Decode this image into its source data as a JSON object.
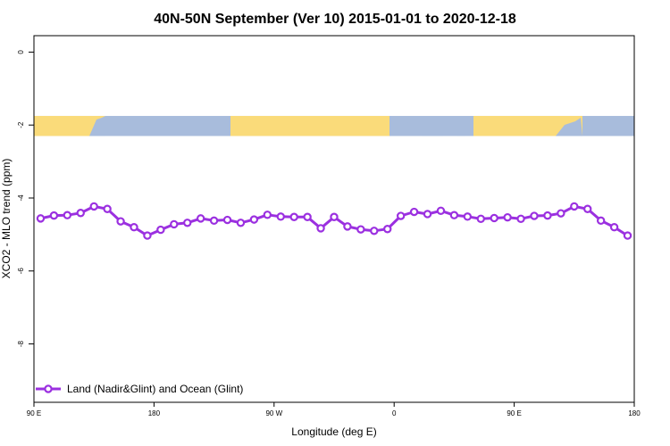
{
  "chart_data": {
    "type": "line",
    "title": "40N-50N September (Ver 10)   2015-01-01 to 2020-12-18",
    "xlabel": "Longitude (deg E)",
    "ylabel": "XCO2 - MLO trend (ppm)",
    "x_ticks": [
      {
        "lon": 90,
        "label": "90 E"
      },
      {
        "lon": 180,
        "label": "180"
      },
      {
        "lon": 270,
        "label": "90 W"
      },
      {
        "lon": 360,
        "label": "0"
      },
      {
        "lon": 450,
        "label": "90 E"
      },
      {
        "lon": 540,
        "label": "180"
      }
    ],
    "y_ticks": [
      {
        "value": 0,
        "label": "0"
      },
      {
        "value": -2,
        "label": "-2"
      },
      {
        "value": -4,
        "label": "-4"
      },
      {
        "value": -6,
        "label": "-6"
      },
      {
        "value": -8,
        "label": "-8"
      }
    ],
    "xlim": [
      90,
      540
    ],
    "ylim": [
      -9.6,
      0.45
    ],
    "grid": false,
    "legend_position": "bottom-left",
    "land_ocean_strip": {
      "y_top": -1.75,
      "y_bottom": -2.3,
      "land_color": "#fadb7a",
      "ocean_color": "#a8bcdc"
    },
    "series": [
      {
        "name": "Land (Nadir&Glint) and Ocean (Glint)",
        "color": "#9b30e0",
        "x": [
          95,
          105,
          115,
          125,
          135,
          145,
          155,
          165,
          175,
          185,
          195,
          205,
          215,
          225,
          235,
          245,
          255,
          265,
          275,
          285,
          295,
          305,
          315,
          325,
          335,
          345,
          355,
          365,
          375,
          385,
          395,
          405,
          415,
          425,
          435,
          445,
          455,
          465,
          475,
          485,
          495,
          505,
          515,
          525,
          535
        ],
        "y": [
          -4.56,
          -4.48,
          -4.47,
          -4.41,
          -4.23,
          -4.3,
          -4.64,
          -4.8,
          -5.03,
          -4.87,
          -4.72,
          -4.68,
          -4.56,
          -4.62,
          -4.6,
          -4.68,
          -4.59,
          -4.46,
          -4.51,
          -4.52,
          -4.52,
          -4.83,
          -4.52,
          -4.78,
          -4.86,
          -4.9,
          -4.85,
          -4.49,
          -4.38,
          -4.44,
          -4.35,
          -4.47,
          -4.51,
          -4.57,
          -4.55,
          -4.53,
          -4.57,
          -4.49,
          -4.48,
          -4.42,
          -4.23,
          -4.3,
          -4.62,
          -4.8,
          -5.03
        ]
      }
    ]
  }
}
